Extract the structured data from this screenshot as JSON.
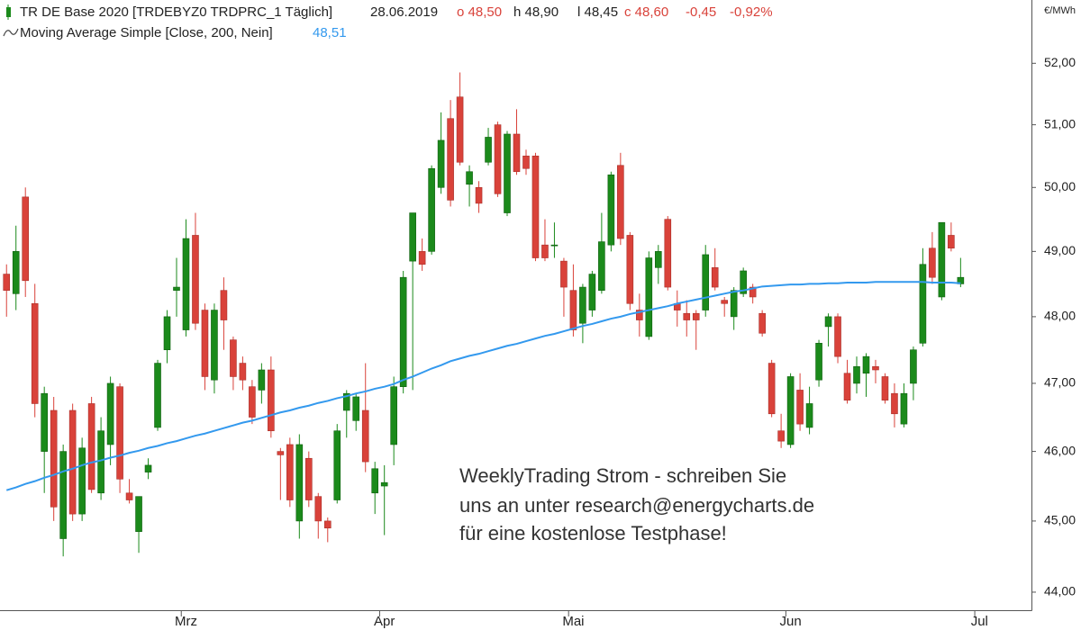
{
  "chart_data": {
    "type": "candlestick",
    "y_label": "€/MWh",
    "log_scale": true,
    "grid": false,
    "ylim": [
      43.75,
      53.05
    ],
    "yticks": [
      {
        "value": 44,
        "label": "44,00"
      },
      {
        "value": 45,
        "label": "45,00"
      },
      {
        "value": 46,
        "label": "46,00"
      },
      {
        "value": 47,
        "label": "47,00"
      },
      {
        "value": 48,
        "label": "48,00"
      },
      {
        "value": 49,
        "label": "49,00"
      },
      {
        "value": 50,
        "label": "50,00"
      },
      {
        "value": 51,
        "label": "51,00"
      },
      {
        "value": 52,
        "label": "52,00"
      }
    ],
    "categories": [
      null,
      null,
      null,
      null,
      null,
      null,
      null,
      null,
      null,
      null,
      null,
      null,
      null,
      null,
      null,
      null,
      null,
      null,
      null,
      "Mrz",
      null,
      null,
      null,
      null,
      null,
      null,
      null,
      null,
      null,
      null,
      null,
      null,
      null,
      null,
      null,
      null,
      null,
      null,
      null,
      null,
      "Apr",
      null,
      null,
      null,
      null,
      null,
      null,
      null,
      null,
      null,
      null,
      null,
      null,
      null,
      null,
      null,
      null,
      null,
      null,
      null,
      "Mai",
      null,
      null,
      null,
      null,
      null,
      null,
      null,
      null,
      null,
      null,
      null,
      null,
      null,
      null,
      null,
      null,
      null,
      null,
      null,
      null,
      null,
      null,
      "Jun",
      null,
      null,
      null,
      null,
      null,
      null,
      null,
      null,
      null,
      null,
      null,
      null,
      null,
      null,
      null,
      null,
      null,
      null,
      null,
      "Jul",
      null,
      null,
      null,
      null,
      null
    ],
    "series": [
      {
        "name": "TR DE Base 2020 [TRDEBYZ0 TRDPRC_1 Täglich]",
        "type": "candlestick",
        "date": "28.06.2019",
        "ohlc_labels": [
          "o 48,50",
          "h 48,90",
          "l 48,45",
          "c 48,60",
          "-0,45",
          "-0,92%"
        ],
        "up_color": "#1b8a1b",
        "down_color": "#d9423a",
        "open": [
          48.65,
          48.35,
          49.85,
          48.2,
          46.0,
          46.6,
          44.75,
          46.6,
          45.1,
          46.7,
          45.4,
          46.1,
          46.95,
          45.4,
          44.85,
          45.7,
          46.35,
          47.5,
          48.4,
          47.8,
          49.25,
          48.1,
          47.05,
          48.4,
          47.65,
          47.3,
          46.95,
          46.9,
          47.2,
          46.0,
          46.1,
          45.0,
          45.9,
          45.35,
          45.0,
          45.3,
          46.6,
          46.45,
          46.6,
          45.4,
          45.5,
          46.1,
          46.95,
          48.85,
          49.0,
          49.0,
          50.0,
          51.1,
          51.45,
          50.05,
          50.0,
          50.4,
          51.0,
          49.6,
          50.85,
          50.5,
          50.5,
          49.1,
          49.1,
          48.85,
          48.4,
          47.9,
          48.1,
          48.4,
          49.1,
          50.35,
          49.25,
          48.1,
          47.7,
          48.75,
          49.5,
          48.2,
          48.05,
          48.05,
          48.1,
          48.75,
          48.25,
          48.0,
          48.35,
          48.45,
          48.05,
          47.3,
          46.3,
          46.1,
          46.9,
          46.35,
          47.05,
          47.85,
          48.0,
          47.15,
          47.0,
          47.15,
          47.25,
          47.1,
          46.85,
          46.4,
          47.0,
          47.6,
          49.05,
          48.3,
          49.25,
          48.5,
          null,
          null,
          null,
          null,
          null,
          null,
          null
        ],
        "high": [
          48.8,
          49.4,
          50.0,
          48.5,
          46.95,
          46.8,
          46.1,
          46.7,
          46.2,
          46.8,
          46.5,
          47.1,
          47.0,
          45.6,
          45.35,
          45.9,
          47.35,
          48.1,
          48.9,
          49.5,
          49.6,
          48.2,
          48.2,
          48.6,
          47.7,
          47.4,
          47.05,
          47.3,
          47.4,
          46.05,
          46.2,
          46.25,
          46.0,
          45.4,
          45.05,
          46.4,
          46.9,
          46.85,
          47.3,
          45.85,
          45.8,
          47.1,
          48.7,
          49.6,
          49.2,
          50.35,
          51.2,
          51.4,
          51.85,
          50.35,
          50.1,
          50.95,
          51.05,
          50.9,
          51.25,
          50.6,
          50.55,
          49.5,
          49.45,
          48.9,
          48.8,
          48.5,
          48.7,
          49.6,
          50.25,
          50.55,
          49.3,
          48.35,
          49.0,
          49.1,
          49.55,
          48.4,
          48.25,
          48.1,
          49.1,
          49.05,
          48.3,
          48.45,
          48.75,
          48.5,
          48.1,
          47.35,
          46.55,
          47.15,
          47.15,
          46.95,
          47.65,
          48.05,
          48.05,
          47.35,
          47.4,
          47.45,
          47.35,
          47.15,
          47.0,
          47.0,
          47.55,
          49.05,
          49.3,
          49.45,
          49.45,
          48.9,
          null,
          null,
          null,
          null,
          null,
          null,
          null
        ],
        "low": [
          48.0,
          48.1,
          48.3,
          46.5,
          45.4,
          45.0,
          44.5,
          45.0,
          45.0,
          45.4,
          45.3,
          45.8,
          45.4,
          45.25,
          44.55,
          45.6,
          46.3,
          47.3,
          48.0,
          47.7,
          47.8,
          46.9,
          46.85,
          47.5,
          46.9,
          46.9,
          46.4,
          46.7,
          46.2,
          45.3,
          45.2,
          44.75,
          45.2,
          44.75,
          44.7,
          45.25,
          46.2,
          46.3,
          45.7,
          45.1,
          44.8,
          45.8,
          46.85,
          46.9,
          48.7,
          48.95,
          49.9,
          49.7,
          50.35,
          49.7,
          49.6,
          50.35,
          49.85,
          49.55,
          50.2,
          50.2,
          48.85,
          48.85,
          48.9,
          48.0,
          47.7,
          47.6,
          48.0,
          48.35,
          49.0,
          49.1,
          48.1,
          47.7,
          47.65,
          48.5,
          48.4,
          47.85,
          47.7,
          47.5,
          48.0,
          48.4,
          48.0,
          47.8,
          48.3,
          48.2,
          47.7,
          46.5,
          46.05,
          46.05,
          46.3,
          46.25,
          46.95,
          47.55,
          47.3,
          46.7,
          46.85,
          46.8,
          47.0,
          46.7,
          46.35,
          46.35,
          46.75,
          47.55,
          48.5,
          48.25,
          49.0,
          48.45,
          null,
          null,
          null,
          null,
          null,
          null,
          null
        ],
        "close": [
          48.4,
          49.0,
          48.55,
          46.7,
          46.85,
          45.2,
          46.0,
          45.1,
          46.05,
          45.45,
          46.3,
          47.0,
          45.6,
          45.3,
          45.35,
          45.8,
          47.3,
          48.0,
          48.45,
          49.2,
          47.9,
          47.1,
          48.1,
          47.95,
          47.1,
          47.05,
          46.5,
          47.2,
          46.3,
          45.95,
          45.3,
          46.1,
          45.3,
          45.0,
          44.9,
          46.3,
          46.85,
          46.8,
          45.85,
          45.75,
          45.55,
          46.95,
          48.6,
          49.6,
          48.8,
          50.3,
          50.75,
          49.8,
          50.4,
          50.25,
          49.75,
          50.8,
          49.9,
          50.85,
          50.25,
          50.3,
          48.9,
          48.9,
          49.1,
          48.45,
          47.8,
          48.45,
          48.65,
          49.15,
          50.2,
          49.2,
          48.2,
          47.95,
          48.9,
          49.0,
          48.45,
          48.1,
          47.95,
          47.95,
          48.95,
          48.45,
          48.2,
          48.4,
          48.7,
          48.3,
          47.75,
          46.55,
          46.15,
          47.1,
          46.4,
          46.7,
          47.6,
          48.0,
          47.4,
          46.75,
          47.25,
          47.4,
          47.2,
          46.75,
          46.55,
          46.85,
          47.5,
          48.8,
          48.6,
          49.45,
          49.05,
          48.6,
          null,
          null,
          null,
          null,
          null,
          null,
          null
        ]
      },
      {
        "name": "Moving Average Simple  [Close, 200, Nein]",
        "type": "line",
        "color": "#3399ee",
        "last_value_label": "48,51",
        "values": [
          45.44,
          45.48,
          45.53,
          45.57,
          45.62,
          45.66,
          45.71,
          45.75,
          45.8,
          45.84,
          45.87,
          45.91,
          45.94,
          45.98,
          46.01,
          46.05,
          46.08,
          46.12,
          46.15,
          46.19,
          46.23,
          46.26,
          46.3,
          46.34,
          46.38,
          46.42,
          46.45,
          46.49,
          46.53,
          46.57,
          46.6,
          46.64,
          46.67,
          46.71,
          46.74,
          46.78,
          46.81,
          46.85,
          46.88,
          46.92,
          46.95,
          46.99,
          47.05,
          47.1,
          47.16,
          47.22,
          47.27,
          47.33,
          47.37,
          47.41,
          47.44,
          47.48,
          47.52,
          47.56,
          47.59,
          47.63,
          47.67,
          47.71,
          47.74,
          47.78,
          47.82,
          47.86,
          47.89,
          47.93,
          47.97,
          48.0,
          48.04,
          48.07,
          48.1,
          48.13,
          48.16,
          48.2,
          48.23,
          48.26,
          48.29,
          48.32,
          48.35,
          48.38,
          48.4,
          48.43,
          48.46,
          48.47,
          48.48,
          48.49,
          48.49,
          48.5,
          48.5,
          48.51,
          48.51,
          48.52,
          48.52,
          48.52,
          48.53,
          48.53,
          48.53,
          48.53,
          48.53,
          48.53,
          48.52,
          48.52,
          48.52,
          48.51,
          null,
          null,
          null,
          null,
          null,
          null,
          null
        ]
      }
    ],
    "annotation": [
      "WeeklyTrading Strom - schreiben Sie",
      "uns an unter research@energycharts.de",
      "für eine kostenlose Testphase!"
    ]
  }
}
